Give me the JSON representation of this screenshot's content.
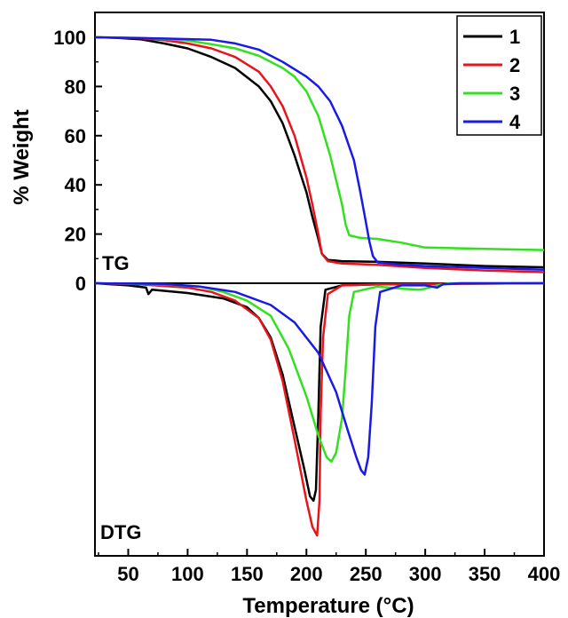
{
  "chart_data": {
    "type": "line",
    "xlabel": "Temperature (°C)",
    "ylabel": "% Weight",
    "xlim": [
      22,
      400
    ],
    "ylim": [
      0,
      110
    ],
    "x_ticks": [
      50,
      100,
      150,
      200,
      250,
      300,
      350,
      400
    ],
    "y_ticks": [
      0,
      20,
      40,
      60,
      80,
      100
    ],
    "grid": false,
    "legend_position": "top-right",
    "panels": [
      "TG",
      "DTG"
    ],
    "colors": {
      "1": "#000000",
      "2": "#e8141c",
      "3": "#33e01f",
      "4": "#1a1ae6"
    },
    "tg_series": [
      {
        "name": "1",
        "points": [
          [
            22,
            100
          ],
          [
            40,
            99.8
          ],
          [
            60,
            99.2
          ],
          [
            80,
            97.5
          ],
          [
            100,
            95.5
          ],
          [
            120,
            92
          ],
          [
            140,
            87.5
          ],
          [
            160,
            80
          ],
          [
            170,
            74
          ],
          [
            180,
            65
          ],
          [
            190,
            52
          ],
          [
            200,
            37
          ],
          [
            205,
            27
          ],
          [
            210,
            18
          ],
          [
            213,
            12
          ],
          [
            218,
            9.5
          ],
          [
            230,
            9
          ],
          [
            260,
            8.7
          ],
          [
            300,
            8
          ],
          [
            350,
            7
          ],
          [
            400,
            6.5
          ]
        ]
      },
      {
        "name": "2",
        "points": [
          [
            22,
            100
          ],
          [
            40,
            99.9
          ],
          [
            60,
            99.6
          ],
          [
            80,
            98.8
          ],
          [
            100,
            97.5
          ],
          [
            120,
            95.5
          ],
          [
            140,
            92
          ],
          [
            160,
            86
          ],
          [
            170,
            80
          ],
          [
            180,
            72
          ],
          [
            190,
            60
          ],
          [
            200,
            43
          ],
          [
            205,
            32
          ],
          [
            210,
            20
          ],
          [
            213,
            12
          ],
          [
            218,
            9
          ],
          [
            230,
            8
          ],
          [
            260,
            7.5
          ],
          [
            300,
            6.2
          ],
          [
            350,
            5.2
          ],
          [
            400,
            4.5
          ]
        ]
      },
      {
        "name": "3",
        "points": [
          [
            22,
            100
          ],
          [
            60,
            99.8
          ],
          [
            80,
            99.3
          ],
          [
            100,
            98.7
          ],
          [
            120,
            97.2
          ],
          [
            140,
            95.5
          ],
          [
            160,
            92.5
          ],
          [
            180,
            87.5
          ],
          [
            190,
            84
          ],
          [
            200,
            78
          ],
          [
            210,
            68
          ],
          [
            220,
            52
          ],
          [
            225,
            42
          ],
          [
            230,
            32
          ],
          [
            233,
            24
          ],
          [
            236,
            19.5
          ],
          [
            245,
            18.5
          ],
          [
            260,
            18
          ],
          [
            280,
            16.5
          ],
          [
            300,
            14.5
          ],
          [
            350,
            14
          ],
          [
            400,
            13.5
          ]
        ]
      },
      {
        "name": "4",
        "points": [
          [
            22,
            100
          ],
          [
            80,
            99.5
          ],
          [
            120,
            99
          ],
          [
            140,
            97.5
          ],
          [
            160,
            95
          ],
          [
            180,
            90
          ],
          [
            200,
            84
          ],
          [
            210,
            80
          ],
          [
            220,
            74
          ],
          [
            230,
            64
          ],
          [
            240,
            50
          ],
          [
            245,
            38
          ],
          [
            250,
            25
          ],
          [
            253,
            17
          ],
          [
            256,
            11
          ],
          [
            260,
            8.5
          ],
          [
            280,
            7.5
          ],
          [
            300,
            7
          ],
          [
            350,
            6.2
          ],
          [
            400,
            5.5
          ]
        ]
      }
    ],
    "dtg_series": [
      {
        "name": "1",
        "points": [
          [
            22,
            0
          ],
          [
            50,
            -1
          ],
          [
            65,
            -2
          ],
          [
            67,
            -5
          ],
          [
            70,
            -3
          ],
          [
            100,
            -4.5
          ],
          [
            130,
            -7
          ],
          [
            150,
            -11
          ],
          [
            160,
            -16
          ],
          [
            170,
            -25
          ],
          [
            180,
            -42
          ],
          [
            190,
            -66
          ],
          [
            198,
            -85
          ],
          [
            203,
            -98
          ],
          [
            206,
            -100
          ],
          [
            208,
            -95
          ],
          [
            210,
            -60
          ],
          [
            212,
            -20
          ],
          [
            216,
            -3
          ],
          [
            230,
            -1
          ],
          [
            260,
            -0.5
          ],
          [
            400,
            0
          ]
        ]
      },
      {
        "name": "2",
        "points": [
          [
            22,
            0
          ],
          [
            60,
            -0.5
          ],
          [
            100,
            -2
          ],
          [
            120,
            -4
          ],
          [
            140,
            -8
          ],
          [
            160,
            -16
          ],
          [
            170,
            -26
          ],
          [
            180,
            -45
          ],
          [
            190,
            -72
          ],
          [
            200,
            -100
          ],
          [
            205,
            -112
          ],
          [
            209,
            -116
          ],
          [
            211,
            -100
          ],
          [
            212,
            -60
          ],
          [
            214,
            -25
          ],
          [
            218,
            -5
          ],
          [
            230,
            -1
          ],
          [
            260,
            -0.5
          ],
          [
            400,
            0
          ]
        ]
      },
      {
        "name": "3",
        "points": [
          [
            22,
            0
          ],
          [
            80,
            -0.5
          ],
          [
            110,
            -1.5
          ],
          [
            130,
            -4
          ],
          [
            150,
            -8
          ],
          [
            170,
            -15
          ],
          [
            185,
            -30
          ],
          [
            200,
            -52
          ],
          [
            210,
            -70
          ],
          [
            217,
            -80
          ],
          [
            221,
            -82
          ],
          [
            225,
            -78
          ],
          [
            230,
            -62
          ],
          [
            233,
            -40
          ],
          [
            236,
            -15
          ],
          [
            240,
            -4
          ],
          [
            260,
            -1.5
          ],
          [
            280,
            -2.5
          ],
          [
            295,
            -3
          ],
          [
            300,
            -2.5
          ],
          [
            310,
            -1
          ],
          [
            320,
            0
          ],
          [
            400,
            0
          ]
        ]
      },
      {
        "name": "4",
        "points": [
          [
            22,
            0
          ],
          [
            80,
            -0.3
          ],
          [
            110,
            -1.5
          ],
          [
            140,
            -4
          ],
          [
            170,
            -10
          ],
          [
            190,
            -18
          ],
          [
            210,
            -32
          ],
          [
            225,
            -50
          ],
          [
            235,
            -68
          ],
          [
            242,
            -80
          ],
          [
            246,
            -86
          ],
          [
            249,
            -88
          ],
          [
            252,
            -80
          ],
          [
            255,
            -55
          ],
          [
            258,
            -20
          ],
          [
            262,
            -4
          ],
          [
            280,
            -1
          ],
          [
            300,
            -1
          ],
          [
            310,
            -2
          ],
          [
            315,
            -0.5
          ],
          [
            330,
            0
          ],
          [
            400,
            0
          ]
        ]
      }
    ]
  }
}
